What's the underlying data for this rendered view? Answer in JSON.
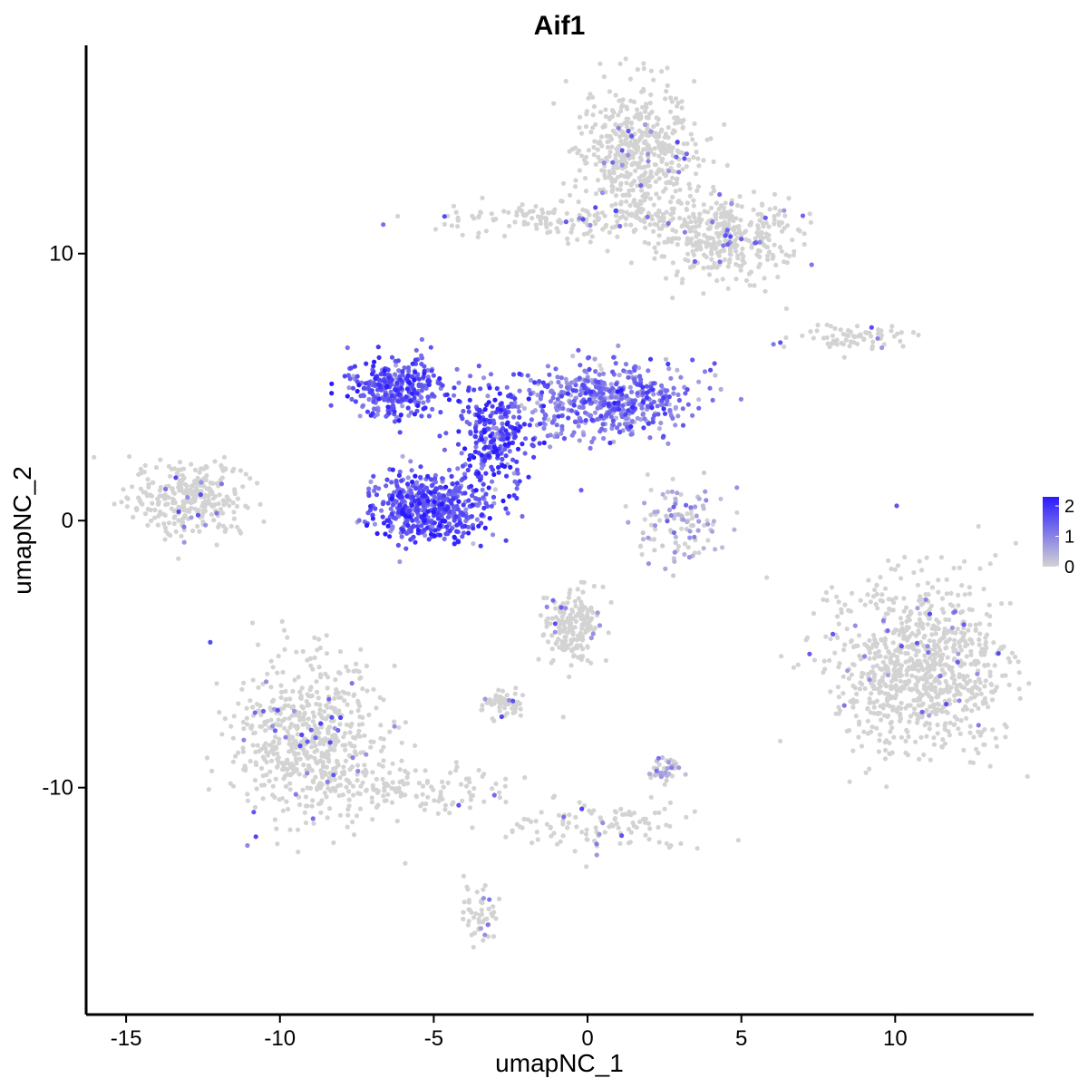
{
  "chart_data": {
    "type": "scatter",
    "title": "Aif1",
    "xlabel": "umapNC_1",
    "ylabel": "umapNC_2",
    "xlim": [
      -16.3,
      14.5
    ],
    "ylim": [
      -18.5,
      17.8
    ],
    "x_ticks": [
      -15,
      -10,
      -5,
      0,
      5,
      10
    ],
    "x_tick_labels": [
      "-15",
      "-10",
      "-5",
      "0",
      "5",
      "10"
    ],
    "y_ticks": [
      -10,
      0,
      10
    ],
    "y_tick_labels": [
      "-10",
      "0",
      "10"
    ],
    "grid": false,
    "legend": {
      "position": "right",
      "type": "colorbar",
      "labels": [
        "2",
        "1",
        "0"
      ],
      "values": [
        2,
        1,
        0
      ],
      "range": [
        0,
        2.3
      ]
    },
    "colors": {
      "low": "#d3d3d3",
      "high": "#2a1aff"
    },
    "clusters": [
      {
        "name": "top-right",
        "center": [
          1.6,
          13.8
        ],
        "spread": [
          0.9,
          1.3
        ],
        "n": 520,
        "mean_expr": 0.03
      },
      {
        "name": "top-right-lower",
        "center": [
          4.4,
          10.6
        ],
        "spread": [
          1.2,
          0.8
        ],
        "n": 380,
        "mean_expr": 0.05
      },
      {
        "name": "top-right-arm",
        "center": [
          -0.8,
          11.3
        ],
        "spread": [
          2.4,
          0.35
        ],
        "n": 160,
        "mean_expr": 0.04
      },
      {
        "name": "small-right-strip",
        "center": [
          8.7,
          6.9
        ],
        "spread": [
          1.0,
          0.25
        ],
        "n": 70,
        "mean_expr": 0.05
      },
      {
        "name": "left",
        "center": [
          -13.0,
          0.9
        ],
        "spread": [
          0.9,
          0.7
        ],
        "n": 300,
        "mean_expr": 0.05
      },
      {
        "name": "center-left-lobe",
        "center": [
          -6.2,
          5.0
        ],
        "spread": [
          0.8,
          0.6
        ],
        "n": 320,
        "mean_expr": 1.5
      },
      {
        "name": "center-bottom-lobe",
        "center": [
          -5.1,
          0.5
        ],
        "spread": [
          0.9,
          0.6
        ],
        "n": 520,
        "mean_expr": 1.5
      },
      {
        "name": "center-stem",
        "center": [
          -3.1,
          3.0
        ],
        "spread": [
          0.6,
          1.0
        ],
        "n": 260,
        "mean_expr": 1.7
      },
      {
        "name": "center-right-lobe",
        "center": [
          0.6,
          4.5
        ],
        "spread": [
          1.4,
          0.7
        ],
        "n": 520,
        "mean_expr": 1.1
      },
      {
        "name": "small-center-right",
        "center": [
          3.1,
          -0.2
        ],
        "spread": [
          0.7,
          0.7
        ],
        "n": 110,
        "mean_expr": 0.3
      },
      {
        "name": "right-big",
        "center": [
          10.9,
          -5.5
        ],
        "spread": [
          1.5,
          1.6
        ],
        "n": 900,
        "mean_expr": 0.05
      },
      {
        "name": "bottom-left",
        "center": [
          -9.0,
          -8.3
        ],
        "spread": [
          1.2,
          1.5
        ],
        "n": 620,
        "mean_expr": 0.03
      },
      {
        "name": "bottom-left-tail",
        "center": [
          -5.5,
          -10.0
        ],
        "spread": [
          1.5,
          0.45
        ],
        "n": 120,
        "mean_expr": 0.03
      },
      {
        "name": "bottom-center",
        "center": [
          -0.5,
          -4.0
        ],
        "spread": [
          0.5,
          0.7
        ],
        "n": 180,
        "mean_expr": 0.1
      },
      {
        "name": "bottom-center-small",
        "center": [
          -2.8,
          -6.9
        ],
        "spread": [
          0.35,
          0.3
        ],
        "n": 60,
        "mean_expr": 0.08
      },
      {
        "name": "bottom-mid",
        "center": [
          2.4,
          -9.4
        ],
        "spread": [
          0.3,
          0.25
        ],
        "n": 40,
        "mean_expr": 0.3
      },
      {
        "name": "bottom-trail",
        "center": [
          0.5,
          -11.3
        ],
        "spread": [
          1.6,
          0.5
        ],
        "n": 110,
        "mean_expr": 0.03
      },
      {
        "name": "bottom-far",
        "center": [
          -3.5,
          -14.6
        ],
        "spread": [
          0.25,
          0.6
        ],
        "n": 50,
        "mean_expr": 0.05
      }
    ]
  }
}
